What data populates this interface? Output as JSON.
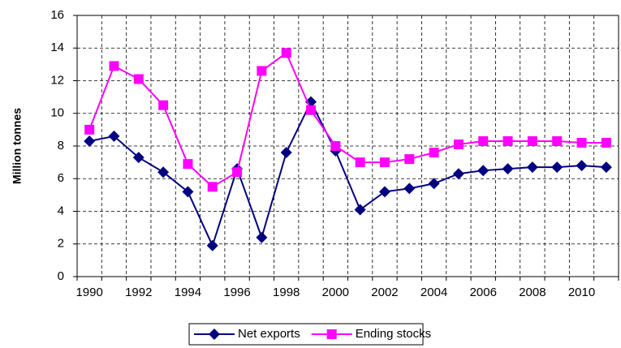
{
  "chart_data": {
    "type": "line",
    "y_label": "Million tonnes",
    "categories": [
      "1990",
      null,
      "1992",
      null,
      "1994",
      null,
      "1996",
      null,
      "1998",
      null,
      "2000",
      null,
      "2002",
      null,
      "2004",
      null,
      "2006",
      null,
      "2008",
      null,
      "2010",
      null
    ],
    "series": [
      {
        "name": "Net exports",
        "color": "#000080",
        "marker": "diamond",
        "values": [
          8.3,
          8.6,
          7.3,
          6.4,
          5.2,
          1.9,
          6.6,
          2.4,
          7.6,
          10.7,
          7.7,
          4.1,
          5.2,
          5.4,
          5.7,
          6.3,
          6.5,
          6.6,
          6.7,
          6.7,
          6.8,
          6.7
        ]
      },
      {
        "name": "Ending stocks",
        "color": "#ff00ff",
        "marker": "square",
        "values": [
          9.0,
          12.9,
          12.1,
          10.5,
          6.9,
          5.5,
          6.4,
          12.6,
          13.7,
          10.2,
          8.0,
          7.0,
          7.0,
          7.2,
          7.6,
          8.1,
          8.3,
          8.3,
          8.3,
          8.3,
          8.2,
          8.2
        ]
      }
    ],
    "ylim": [
      0,
      16
    ],
    "yticks": [
      0,
      2,
      4,
      6,
      8,
      10,
      12,
      14,
      16
    ],
    "grid": true,
    "legend": "bottom"
  }
}
